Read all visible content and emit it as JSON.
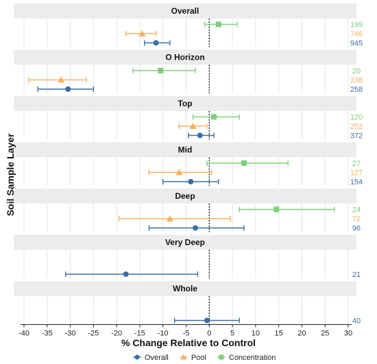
{
  "chart_data": {
    "type": "forest",
    "xlabel": "% Change Relative to Control",
    "ylabel": "Soil Sample Layer",
    "xlim": [
      -42,
      31
    ],
    "x_ticks": [
      "-40",
      "-35",
      "-30",
      "-25",
      "-20",
      "-15",
      "-10",
      "-5",
      "0",
      "5",
      "10",
      "15",
      "20",
      "25",
      "30"
    ],
    "reference_line": 0,
    "legend": {
      "position": "bottom",
      "items": [
        {
          "name": "Overall",
          "color": "#3a6ea8",
          "marker": "circle"
        },
        {
          "name": "Pool",
          "color": "#f5b25e",
          "marker": "triangle"
        },
        {
          "name": "Concentration",
          "color": "#7ccf7a",
          "marker": "square"
        }
      ]
    },
    "panels": [
      {
        "label": "Overall",
        "rows": [
          {
            "series": "Concentration",
            "estimate": 2.0,
            "ci": [
              -1.0,
              6.0
            ],
            "n": "199"
          },
          {
            "series": "Pool",
            "estimate": -14.5,
            "ci": [
              -18.0,
              -11.5
            ],
            "n": "746"
          },
          {
            "series": "Overall",
            "estimate": -11.5,
            "ci": [
              -14.0,
              -8.5
            ],
            "n": "945"
          }
        ]
      },
      {
        "label": "O Horizon",
        "rows": [
          {
            "series": "Concentration",
            "estimate": -10.5,
            "ci": [
              -16.5,
              -3.0
            ],
            "n": "20"
          },
          {
            "series": "Pool",
            "estimate": -32.0,
            "ci": [
              -39.0,
              -26.5
            ],
            "n": "238"
          },
          {
            "series": "Overall",
            "estimate": -30.5,
            "ci": [
              -37.0,
              -25.0
            ],
            "n": "258"
          }
        ]
      },
      {
        "label": "Top",
        "rows": [
          {
            "series": "Concentration",
            "estimate": 1.0,
            "ci": [
              -3.5,
              6.5
            ],
            "n": "120"
          },
          {
            "series": "Pool",
            "estimate": -3.5,
            "ci": [
              -6.5,
              -0.5
            ],
            "n": "252"
          },
          {
            "series": "Overall",
            "estimate": -2.0,
            "ci": [
              -4.5,
              1.0
            ],
            "n": "372"
          }
        ]
      },
      {
        "label": "Mid",
        "rows": [
          {
            "series": "Concentration",
            "estimate": 7.5,
            "ci": [
              -0.5,
              17.0
            ],
            "n": "27"
          },
          {
            "series": "Pool",
            "estimate": -6.5,
            "ci": [
              -13.0,
              0.5
            ],
            "n": "127"
          },
          {
            "series": "Overall",
            "estimate": -4.0,
            "ci": [
              -10.0,
              2.0
            ],
            "n": "154"
          }
        ]
      },
      {
        "label": "Deep",
        "rows": [
          {
            "series": "Concentration",
            "estimate": 14.5,
            "ci": [
              6.5,
              27.0
            ],
            "n": "24"
          },
          {
            "series": "Pool",
            "estimate": -8.5,
            "ci": [
              -19.5,
              4.5
            ],
            "n": "72"
          },
          {
            "series": "Overall",
            "estimate": -3.0,
            "ci": [
              -13.0,
              7.5
            ],
            "n": "96"
          }
        ]
      },
      {
        "label": "Very Deep",
        "rows": [
          {
            "series": "Overall",
            "estimate": -18.0,
            "ci": [
              -31.0,
              -2.5
            ],
            "n": "21"
          }
        ]
      },
      {
        "label": "Whole",
        "rows": [
          {
            "series": "Overall",
            "estimate": -0.5,
            "ci": [
              -7.5,
              6.5
            ],
            "n": "40"
          }
        ]
      }
    ]
  }
}
